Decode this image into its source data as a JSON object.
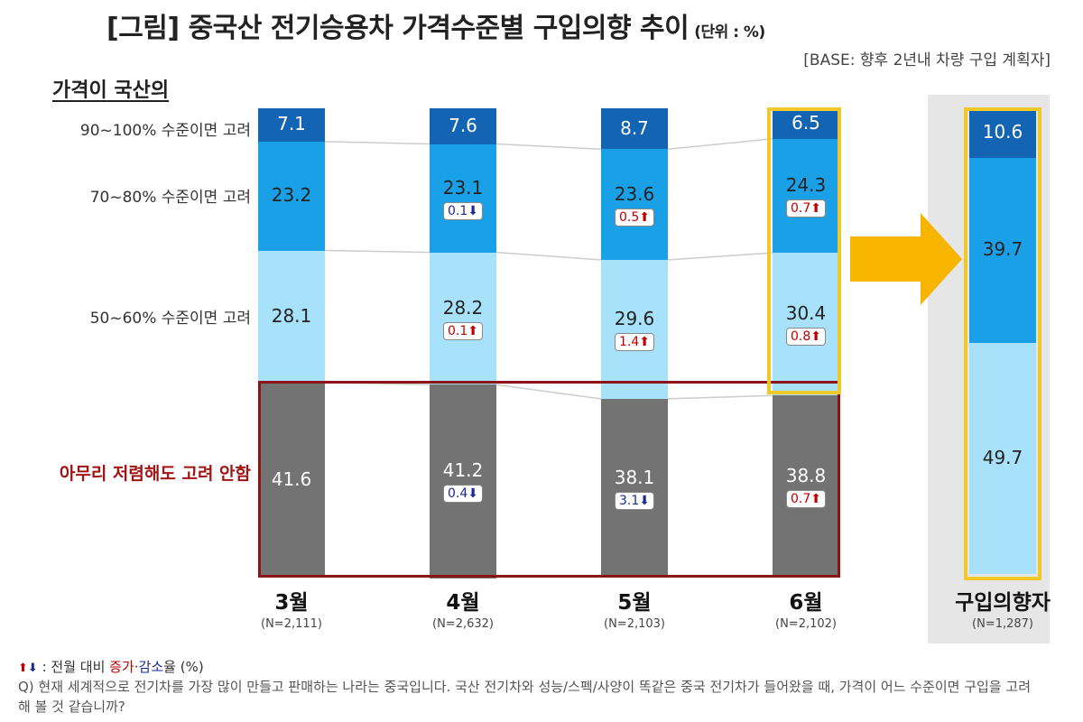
{
  "header": {
    "title": "[그림] 중국산 전기승용차 가격수준별 구입의향 추이",
    "unit": "(단위 : %)",
    "base": "[BASE: 향후 2년내 차량 구입 계획자]",
    "price_label": "가격이 국산의"
  },
  "row_labels": [
    "90~100% 수준이면 고려",
    "70~80% 수준이면 고려",
    "50~60% 수준이면 고려",
    "아무리 저렴해도 고려 안함"
  ],
  "chart_data": [
    {
      "type": "bar",
      "stacked": true,
      "categories": [
        "3월",
        "4월",
        "5월",
        "6월"
      ],
      "sample_sizes": [
        "(N=2,111)",
        "(N=2,632)",
        "(N=2,103)",
        "(N=2,102)"
      ],
      "series": [
        {
          "name": "90~100% 수준이면 고려",
          "values": [
            7.1,
            7.6,
            8.7,
            6.5
          ],
          "color": "#1464b4"
        },
        {
          "name": "70~80% 수준이면 고려",
          "values": [
            23.2,
            23.1,
            23.6,
            24.3
          ],
          "color": "#1aa0e6"
        },
        {
          "name": "50~60% 수준이면 고려",
          "values": [
            28.1,
            28.2,
            29.6,
            30.4
          ],
          "color": "#a8e2fa"
        },
        {
          "name": "아무리 저렴해도 고려 안함",
          "values": [
            41.6,
            41.2,
            38.1,
            38.8
          ],
          "color": "#737373"
        }
      ],
      "changes": [
        {
          "category": "4월",
          "series": "70~80% 수준이면 고려",
          "value": "0.1",
          "direction": "down"
        },
        {
          "category": "5월",
          "series": "70~80% 수준이면 고려",
          "value": "0.5",
          "direction": "up"
        },
        {
          "category": "6월",
          "series": "70~80% 수준이면 고려",
          "value": "0.7",
          "direction": "up"
        },
        {
          "category": "4월",
          "series": "50~60% 수준이면 고려",
          "value": "0.1",
          "direction": "up"
        },
        {
          "category": "5월",
          "series": "50~60% 수준이면 고려",
          "value": "1.4",
          "direction": "up"
        },
        {
          "category": "6월",
          "series": "50~60% 수준이면 고려",
          "value": "0.8",
          "direction": "up"
        },
        {
          "category": "4월",
          "series": "아무리 저렴해도 고려 안함",
          "value": "0.4",
          "direction": "down"
        },
        {
          "category": "5월",
          "series": "아무리 저렴해도 고려 안함",
          "value": "3.1",
          "direction": "down"
        },
        {
          "category": "6월",
          "series": "아무리 저렴해도 고려 안함",
          "value": "0.7",
          "direction": "up"
        }
      ]
    },
    {
      "type": "bar",
      "stacked": true,
      "categories": [
        "구입의향자"
      ],
      "sample_sizes": [
        "(N=1,287)"
      ],
      "series": [
        {
          "name": "90~100% 수준이면 고려",
          "values": [
            10.6
          ],
          "color": "#1464b4"
        },
        {
          "name": "70~80% 수준이면 고려",
          "values": [
            39.7
          ],
          "color": "#1aa0e6"
        },
        {
          "name": "50~60% 수준이면 고려",
          "values": [
            49.7
          ],
          "color": "#a8e2fa"
        }
      ]
    }
  ],
  "legend": {
    "arrows": "⬆⬇",
    "text1": " : 전월 대비 ",
    "increase": "증가",
    "separator": "·",
    "decrease": "감소",
    "text2": "율 (%)"
  },
  "question": "Q) 현재 세계적으로 전기차를 가장 많이 만들고 판매하는 나라는 중국입니다. 국산 전기차와 성능/스펙/사양이 똑같은 중국 전기차가 들어왔을 때, 가격이 어느 수준이면 구입을 고려해 볼 것 같습니까?",
  "colors": {
    "highlight": "#f0c82a",
    "no_consider_box": "#8b1414",
    "up": "#c00000",
    "down": "#1a2a99"
  }
}
